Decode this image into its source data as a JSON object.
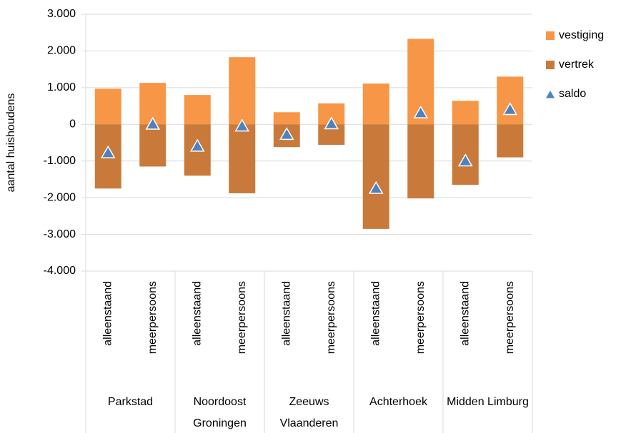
{
  "chart_data": {
    "type": "bar",
    "y_label": "aantal huishoudens",
    "categories": [
      "alleenstaand",
      "meerpersoons",
      "alleenstaand",
      "meerpersoons",
      "alleenstaand",
      "meerpersoons",
      "alleenstaand",
      "meerpersoons",
      "alleenstaand",
      "meerpersoons"
    ],
    "groups": [
      "Parkstad",
      "Noordoost Groningen",
      "Zeeuws Vlaanderen",
      "Achterhoek",
      "Midden Limburg"
    ],
    "series": [
      {
        "name": "vestiging",
        "color": "#f79646",
        "kind": "bar",
        "values": [
          970,
          1130,
          800,
          1830,
          330,
          570,
          1110,
          2330,
          640,
          1300
        ]
      },
      {
        "name": "vertrek",
        "color": "#c97a3a",
        "kind": "bar",
        "values": [
          -1750,
          -1150,
          -1400,
          -1880,
          -620,
          -560,
          -2850,
          -2020,
          -1650,
          -900
        ]
      },
      {
        "name": "saldo",
        "color": "#4f81bd",
        "kind": "triangle",
        "values": [
          -780,
          0,
          -600,
          -50,
          -280,
          10,
          -1750,
          310,
          -1000,
          400
        ]
      }
    ],
    "ylim": [
      -4000,
      3000
    ],
    "yticks": [
      {
        "value": -4000,
        "label": "-4.000"
      },
      {
        "value": -3000,
        "label": "-3.000"
      },
      {
        "value": -2000,
        "label": "-2.000"
      },
      {
        "value": -1000,
        "label": "-1.000"
      },
      0,
      {
        "value": 1000,
        "label": "1.000"
      },
      {
        "value": 2000,
        "label": "2.000"
      },
      {
        "value": 3000,
        "label": "3.000"
      }
    ],
    "grid": true,
    "legend": "right"
  }
}
